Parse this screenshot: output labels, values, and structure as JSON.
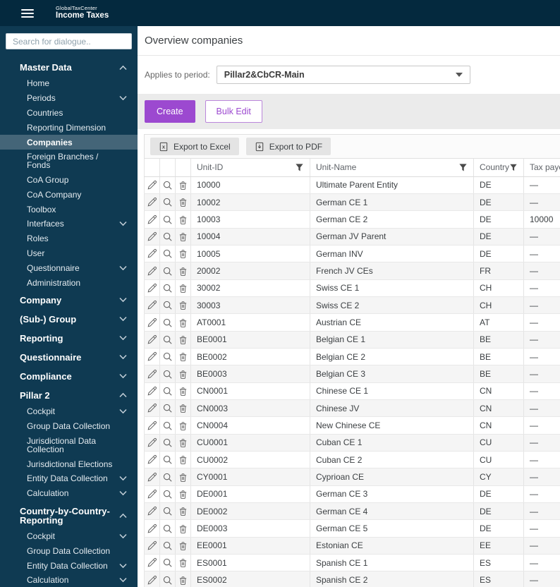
{
  "topbar": {
    "brand_small": "GlobalTaxCenter",
    "brand_title": "Income Taxes"
  },
  "sidebar": {
    "search_placeholder": "Search for dialogue..",
    "sections": [
      {
        "label": "Master Data",
        "chevron": "up",
        "children": [
          {
            "label": "Home"
          },
          {
            "label": "Periods",
            "chevron": "down"
          },
          {
            "label": "Countries"
          },
          {
            "label": "Reporting Dimension"
          },
          {
            "label": "Companies",
            "selected": true
          },
          {
            "label": "Foreign Branches / Fonds"
          },
          {
            "label": "CoA Group"
          },
          {
            "label": "CoA Company"
          },
          {
            "label": "Toolbox"
          },
          {
            "label": "Interfaces",
            "chevron": "down"
          },
          {
            "label": "Roles"
          },
          {
            "label": "User"
          },
          {
            "label": "Questionnaire",
            "chevron": "down"
          },
          {
            "label": "Administration"
          }
        ]
      },
      {
        "label": "Company",
        "chevron": "down"
      },
      {
        "label": "(Sub-) Group",
        "chevron": "down"
      },
      {
        "label": "Reporting",
        "chevron": "down"
      },
      {
        "label": "Questionnaire",
        "chevron": "down"
      },
      {
        "label": "Compliance",
        "chevron": "down"
      },
      {
        "label": "Pillar 2",
        "chevron": "up",
        "children": [
          {
            "label": "Cockpit",
            "chevron": "down"
          },
          {
            "label": "Group Data Collection"
          },
          {
            "label": "Jurisdictional Data Collection"
          },
          {
            "label": "Jurisdictional Elections"
          },
          {
            "label": "Entity Data Collection",
            "chevron": "down"
          },
          {
            "label": "Calculation",
            "chevron": "down"
          }
        ]
      },
      {
        "label": "Country-by-Country-Reporting",
        "chevron": "up",
        "children": [
          {
            "label": "Cockpit",
            "chevron": "down"
          },
          {
            "label": "Group Data Collection"
          },
          {
            "label": "Entity Data Collection",
            "chevron": "down"
          },
          {
            "label": "Calculation",
            "chevron": "down"
          }
        ]
      }
    ]
  },
  "main": {
    "title": "Overview companies",
    "period_label": "Applies to period:",
    "period_value": "Pillar2&CbCR-Main",
    "create_label": "Create",
    "bulk_edit_label": "Bulk Edit",
    "export_excel": "Export to Excel",
    "export_pdf": "Export to PDF"
  },
  "table": {
    "columns": [
      "Unit-ID",
      "Unit-Name",
      "Country",
      "Tax payer"
    ],
    "rows": [
      {
        "unit_id": "10000",
        "unit_name": "Ultimate Parent Entity",
        "country": "DE",
        "tax_payer": "—"
      },
      {
        "unit_id": "10002",
        "unit_name": "German CE 1",
        "country": "DE",
        "tax_payer": "—"
      },
      {
        "unit_id": "10003",
        "unit_name": "German CE 2",
        "country": "DE",
        "tax_payer": "10000"
      },
      {
        "unit_id": "10004",
        "unit_name": "German JV Parent",
        "country": "DE",
        "tax_payer": "—"
      },
      {
        "unit_id": "10005",
        "unit_name": "German INV",
        "country": "DE",
        "tax_payer": "—"
      },
      {
        "unit_id": "20002",
        "unit_name": "French JV CEs",
        "country": "FR",
        "tax_payer": "—"
      },
      {
        "unit_id": "30002",
        "unit_name": "Swiss CE 1",
        "country": "CH",
        "tax_payer": "—"
      },
      {
        "unit_id": "30003",
        "unit_name": "Swiss CE 2",
        "country": "CH",
        "tax_payer": "—"
      },
      {
        "unit_id": "AT0001",
        "unit_name": "Austrian CE",
        "country": "AT",
        "tax_payer": "—"
      },
      {
        "unit_id": "BE0001",
        "unit_name": "Belgian CE 1",
        "country": "BE",
        "tax_payer": "—"
      },
      {
        "unit_id": "BE0002",
        "unit_name": "Belgian CE 2",
        "country": "BE",
        "tax_payer": "—"
      },
      {
        "unit_id": "BE0003",
        "unit_name": "Belgian CE 3",
        "country": "BE",
        "tax_payer": "—"
      },
      {
        "unit_id": "CN0001",
        "unit_name": "Chinese CE 1",
        "country": "CN",
        "tax_payer": "—"
      },
      {
        "unit_id": "CN0003",
        "unit_name": "Chinese JV",
        "country": "CN",
        "tax_payer": "—"
      },
      {
        "unit_id": "CN0004",
        "unit_name": "New Chinese CE",
        "country": "CN",
        "tax_payer": "—"
      },
      {
        "unit_id": "CU0001",
        "unit_name": "Cuban CE 1",
        "country": "CU",
        "tax_payer": "—"
      },
      {
        "unit_id": "CU0002",
        "unit_name": "Cuban CE 2",
        "country": "CU",
        "tax_payer": "—"
      },
      {
        "unit_id": "CY0001",
        "unit_name": "Cyprioan CE",
        "country": "CY",
        "tax_payer": "—"
      },
      {
        "unit_id": "DE0001",
        "unit_name": "German CE 3",
        "country": "DE",
        "tax_payer": "—"
      },
      {
        "unit_id": "DE0002",
        "unit_name": "German CE 4",
        "country": "DE",
        "tax_payer": "—"
      },
      {
        "unit_id": "DE0003",
        "unit_name": "German CE 5",
        "country": "DE",
        "tax_payer": "—"
      },
      {
        "unit_id": "EE0001",
        "unit_name": "Estonian CE",
        "country": "EE",
        "tax_payer": "—"
      },
      {
        "unit_id": "ES0001",
        "unit_name": "Spanish CE 1",
        "country": "ES",
        "tax_payer": "—"
      },
      {
        "unit_id": "ES0002",
        "unit_name": "Spanish CE 2",
        "country": "ES",
        "tax_payer": "—"
      }
    ]
  },
  "colors": {
    "topbar_bg": "#04293e",
    "sidebar_bg": "#0f3a52",
    "sidebar_selected_bg": "#446578",
    "accent_purple": "#9c49d0",
    "band_gray": "#ebebeb",
    "row_alt_bg": "#f5f5f5",
    "table_border": "#e4e4e4"
  }
}
